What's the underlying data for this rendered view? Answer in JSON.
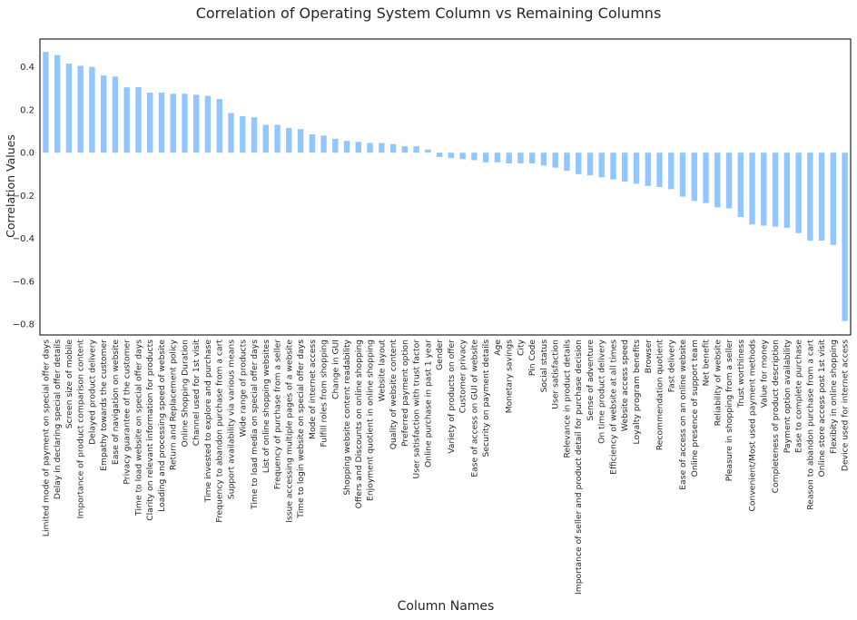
{
  "chart_data": {
    "type": "bar",
    "title": "Correlation of Operating System Column vs Remaining Columns",
    "xlabel": "Column Names",
    "ylabel": "Correlation Values",
    "ylim": [
      -0.85,
      0.53
    ],
    "yticks": [
      -0.8,
      -0.6,
      -0.4,
      -0.2,
      0.0,
      0.2,
      0.4
    ],
    "ytick_labels": [
      "−0.8",
      "−0.6",
      "−0.4",
      "−0.2",
      "0.0",
      "0.2",
      "0.4"
    ],
    "bar_color": "#92c6ff",
    "grid": false,
    "categories": [
      "Limited mode of payment on special offer days",
      "Delay in declaring special offer details",
      "Screen size of mobile",
      "Importance of product comparison content",
      "Delayed product delivery",
      "Empathy towards the customer",
      "Ease of navigation on website",
      "Privacy guarantee of the customer",
      "Time to load website on special offer days",
      "Clarity on relevant information for products",
      "Loading and processing speed of website",
      "Return and Replacement policy",
      "Online Shopping Duration",
      "Channel used for 1st visit",
      "Time invested to explore and purchase",
      "Frequency to abandon purchase from a cart",
      "Support availability via various means",
      "Wide range of products",
      "Time to load media on special offer days",
      "List of online shopping websites",
      "Frequency of purchase from a seller",
      "Issue accessing multiple pages of a website",
      "Time to login website on special offer days",
      "Mode of internet access",
      "Fulfill roles from shopping",
      "Change in GUI",
      "Shopping website content readability",
      "Offers and Discounts on online shopping",
      "Enjoyment quotient in online shopping",
      "Website layout",
      "Quality of website content",
      "Preferred payment option",
      "User satisfaction with trust factor",
      "Online purchase in past 1 year",
      "Gender",
      "Variety of products on offer",
      "Customer privacy",
      "Ease of access on GUI of website",
      "Security on payment details",
      "Age",
      "Monetary savings",
      "City",
      "Pin Code",
      "Social status",
      "User satisfaction",
      "Relevance in product details",
      "Importance of seller and product detail for purchase decision",
      "Sense of adventure",
      "On time product delivery",
      "Efficiency of website at all times",
      "Website access speed",
      "Loyalty program benefits",
      "Browser",
      "Recommendation quotient",
      "Fast delivery",
      "Ease of access on an online website",
      "Online presence of support team",
      "Net benefit",
      "Reliability of website",
      "Pleasure in shopping from a seller",
      "Trust worthiness",
      "Convenient/Most used payment methods",
      "Value for money",
      "Completeness of product description",
      "Payment option availability",
      "Ease to complete purchase",
      "Reason to abandon purchase from a cart",
      "Online store access post 1st visit",
      "Flexibity in online shopping",
      "Device used for internet access"
    ],
    "values": [
      0.47,
      0.455,
      0.415,
      0.405,
      0.4,
      0.36,
      0.355,
      0.305,
      0.305,
      0.28,
      0.28,
      0.275,
      0.275,
      0.27,
      0.265,
      0.25,
      0.185,
      0.17,
      0.165,
      0.13,
      0.13,
      0.115,
      0.11,
      0.085,
      0.08,
      0.065,
      0.055,
      0.05,
      0.045,
      0.045,
      0.04,
      0.03,
      0.03,
      0.015,
      -0.02,
      -0.025,
      -0.03,
      -0.035,
      -0.045,
      -0.045,
      -0.05,
      -0.05,
      -0.05,
      -0.06,
      -0.07,
      -0.085,
      -0.1,
      -0.105,
      -0.115,
      -0.125,
      -0.135,
      -0.145,
      -0.155,
      -0.16,
      -0.17,
      -0.205,
      -0.225,
      -0.235,
      -0.255,
      -0.26,
      -0.3,
      -0.335,
      -0.34,
      -0.345,
      -0.35,
      -0.375,
      -0.41,
      -0.41,
      -0.43,
      -0.785
    ]
  }
}
